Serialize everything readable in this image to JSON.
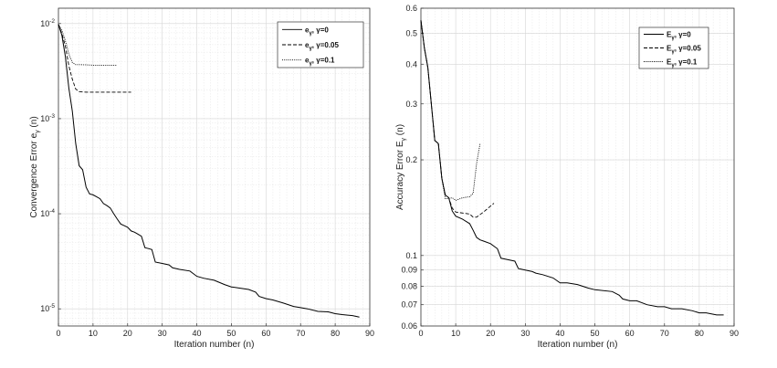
{
  "chart_data": [
    {
      "id": "left",
      "type": "line",
      "yscale": "log",
      "xlabel": "Iteration number (n)",
      "ylabel": "Convergence Error e_γ (n)",
      "ylabel_main": "Convergence Error e",
      "ylabel_sub": "γ",
      "ylabel_tail": " (n)",
      "xlim": [
        0,
        90
      ],
      "ylim": [
        6.6e-06,
        0.0145
      ],
      "xticks": [
        0,
        10,
        20,
        30,
        40,
        50,
        60,
        70,
        80,
        90
      ],
      "xtick_labels": [
        "0",
        "10",
        "20",
        "30",
        "40",
        "50",
        "60",
        "70",
        "80",
        "90"
      ],
      "yticks": [
        1e-05,
        0.0001,
        0.001,
        0.01
      ],
      "ytick_base": [
        "10",
        "10",
        "10",
        "10"
      ],
      "ytick_exp": [
        "-5",
        "-4",
        "-3",
        "-2"
      ],
      "grid": true,
      "legend_position": "top-right",
      "series": [
        {
          "name": "e_γ, γ=0",
          "legend_main": "e",
          "legend_sub": "γ",
          "legend_tail": ", γ=0",
          "style": "solid",
          "x": [
            0,
            1,
            2,
            3,
            4,
            5,
            6,
            7,
            8,
            9,
            10,
            11,
            12,
            13,
            14,
            15,
            16,
            17,
            18,
            19,
            20,
            21,
            22,
            23,
            24,
            25,
            26,
            27,
            28,
            30,
            32,
            33,
            35,
            38,
            40,
            42,
            45,
            48,
            50,
            55,
            57,
            58,
            60,
            62,
            65,
            68,
            70,
            72,
            75,
            78,
            80,
            82,
            85,
            87
          ],
          "values": [
            0.0098,
            0.0075,
            0.0045,
            0.0021,
            0.0012,
            0.00055,
            0.00032,
            0.00029,
            0.00019,
            0.000162,
            0.000158,
            0.000151,
            0.000144,
            0.000128,
            0.000122,
            0.000115,
            0.0001,
            8.8e-05,
            7.8e-05,
            7.5e-05,
            7.2e-05,
            6.6e-05,
            6.4e-05,
            6.1e-05,
            5.8e-05,
            4.4e-05,
            4.3e-05,
            4.2e-05,
            3.1e-05,
            3e-05,
            2.9e-05,
            2.7e-05,
            2.6e-05,
            2.5e-05,
            2.2e-05,
            2.1e-05,
            2e-05,
            1.8e-05,
            1.7e-05,
            1.6e-05,
            1.5e-05,
            1.35e-05,
            1.28e-05,
            1.24e-05,
            1.15e-05,
            1.06e-05,
            1.03e-05,
            1e-05,
            9.4e-06,
            9.3e-06,
            8.9e-06,
            8.7e-06,
            8.5e-06,
            8.2e-06
          ]
        },
        {
          "name": "e_γ, γ=0.05",
          "legend_main": "e",
          "legend_sub": "γ",
          "legend_tail": ", γ=0.05",
          "style": "dashed",
          "x": [
            0,
            1,
            2,
            3,
            4,
            5,
            6,
            8,
            10,
            15,
            21
          ],
          "values": [
            0.0098,
            0.0078,
            0.0058,
            0.0036,
            0.0026,
            0.00205,
            0.00192,
            0.0019,
            0.0019,
            0.0019,
            0.0019
          ]
        },
        {
          "name": "e_γ, γ=0.1",
          "legend_main": "e",
          "legend_sub": "γ",
          "legend_tail": ", γ=0.1",
          "style": "dotted",
          "x": [
            0,
            1,
            2,
            3,
            4,
            5,
            6,
            8,
            10,
            12,
            17
          ],
          "values": [
            0.0098,
            0.0085,
            0.0066,
            0.0048,
            0.0039,
            0.0037,
            0.0037,
            0.00368,
            0.00365,
            0.00365,
            0.00365
          ]
        }
      ]
    },
    {
      "id": "right",
      "type": "line",
      "yscale": "log",
      "xlabel": "Iteration number (n)",
      "ylabel": "Accuracy Error E_γ (n)",
      "ylabel_main": "Accuracy Error E",
      "ylabel_sub": "γ",
      "ylabel_tail": " (n)",
      "xlim": [
        0,
        90
      ],
      "ylim": [
        0.06,
        0.6
      ],
      "xticks": [
        0,
        10,
        20,
        30,
        40,
        50,
        60,
        70,
        80,
        90
      ],
      "xtick_labels": [
        "0",
        "10",
        "20",
        "30",
        "40",
        "50",
        "60",
        "70",
        "80",
        "90"
      ],
      "yticks": [
        0.06,
        0.07,
        0.08,
        0.09,
        0.1,
        0.2,
        0.3,
        0.4,
        0.5,
        0.6
      ],
      "ytick_labels": [
        "0.06",
        "0.07",
        "0.08",
        "0.09",
        "0.1",
        "0.2",
        "0.3",
        "0.4",
        "0.5",
        "0.6"
      ],
      "grid": true,
      "legend_position": "top-right",
      "series": [
        {
          "name": "E_γ, γ=0",
          "legend_main": "E",
          "legend_sub": "γ",
          "legend_tail": ", γ=0",
          "style": "solid",
          "x": [
            0,
            1,
            2,
            3,
            4,
            5,
            6,
            7,
            8,
            9,
            10,
            12,
            14,
            15,
            16,
            17,
            18,
            20,
            22,
            23,
            25,
            27,
            28,
            30,
            32,
            33,
            35,
            38,
            40,
            42,
            45,
            48,
            50,
            55,
            57,
            58,
            60,
            62,
            65,
            68,
            70,
            72,
            75,
            78,
            80,
            82,
            85,
            87
          ],
          "values": [
            0.55,
            0.45,
            0.39,
            0.3,
            0.23,
            0.225,
            0.175,
            0.155,
            0.152,
            0.138,
            0.133,
            0.13,
            0.126,
            0.12,
            0.114,
            0.112,
            0.111,
            0.109,
            0.105,
            0.098,
            0.097,
            0.096,
            0.091,
            0.09,
            0.089,
            0.088,
            0.087,
            0.085,
            0.082,
            0.082,
            0.081,
            0.079,
            0.078,
            0.077,
            0.075,
            0.073,
            0.072,
            0.072,
            0.07,
            0.069,
            0.069,
            0.068,
            0.068,
            0.067,
            0.066,
            0.066,
            0.065,
            0.065
          ]
        },
        {
          "name": "E_γ, γ=0.05",
          "legend_main": "E",
          "legend_sub": "γ",
          "legend_tail": ", γ=0.05",
          "style": "dashed",
          "x": [
            0,
            1,
            2,
            3,
            4,
            5,
            6,
            7,
            8,
            9,
            10,
            12,
            14,
            15,
            16,
            18,
            20,
            21
          ],
          "values": [
            0.55,
            0.45,
            0.39,
            0.3,
            0.23,
            0.225,
            0.175,
            0.155,
            0.152,
            0.141,
            0.137,
            0.136,
            0.135,
            0.132,
            0.132,
            0.137,
            0.143,
            0.146
          ]
        },
        {
          "name": "E_γ, γ=0.1",
          "legend_main": "E",
          "legend_sub": "γ",
          "legend_tail": ", γ=0.1",
          "style": "dotted",
          "x": [
            0,
            1,
            2,
            3,
            4,
            5,
            6,
            7,
            8,
            9,
            10,
            12,
            14,
            15,
            16,
            17
          ],
          "values": [
            0.55,
            0.45,
            0.39,
            0.3,
            0.23,
            0.225,
            0.175,
            0.151,
            0.151,
            0.152,
            0.149,
            0.152,
            0.153,
            0.157,
            0.195,
            0.225
          ]
        }
      ]
    }
  ]
}
